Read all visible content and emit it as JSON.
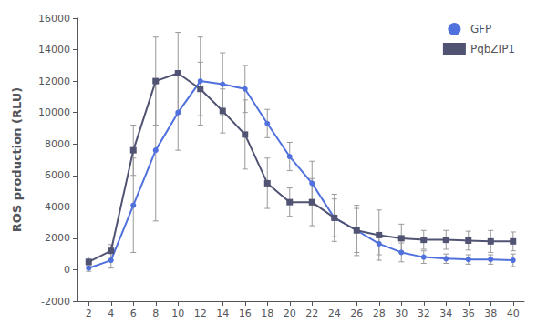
{
  "chart_data": {
    "type": "line",
    "ylabel": "ROS production (RLU)",
    "x": [
      2,
      4,
      6,
      8,
      10,
      12,
      14,
      16,
      18,
      20,
      22,
      24,
      26,
      28,
      30,
      32,
      34,
      36,
      38,
      40
    ],
    "series": [
      {
        "name": "GFP",
        "marker": "circle",
        "values": [
          100,
          600,
          4100,
          7600,
          10000,
          12000,
          11800,
          11500,
          9300,
          7200,
          5500,
          3300,
          2500,
          1650,
          1100,
          800,
          700,
          650,
          650,
          600
        ],
        "errors": [
          200,
          500,
          3000,
          4500,
          2400,
          2800,
          2000,
          1500,
          900,
          900,
          1400,
          1200,
          1400,
          700,
          600,
          400,
          300,
          300,
          300,
          400
        ]
      },
      {
        "name": "PqbZIP1",
        "marker": "square",
        "values": [
          500,
          1200,
          7600,
          12000,
          12500,
          11500,
          10100,
          8600,
          5500,
          4300,
          4300,
          3300,
          2500,
          2200,
          2000,
          1900,
          1900,
          1850,
          1800,
          1800
        ],
        "errors": [
          300,
          400,
          1600,
          2800,
          2600,
          1700,
          1400,
          2200,
          1600,
          900,
          1500,
          1500,
          1600,
          1600,
          900,
          600,
          600,
          600,
          700,
          600
        ]
      }
    ],
    "xlim": [
      1,
      41
    ],
    "xticks": [
      2,
      4,
      6,
      8,
      10,
      12,
      14,
      16,
      18,
      20,
      22,
      24,
      26,
      28,
      30,
      32,
      34,
      36,
      38,
      40
    ],
    "ylim": [
      -2000,
      16000
    ],
    "yticks": [
      -2000,
      0,
      2000,
      4000,
      6000,
      8000,
      10000,
      12000,
      14000,
      16000
    ],
    "grid": false,
    "legend": "upper right"
  }
}
